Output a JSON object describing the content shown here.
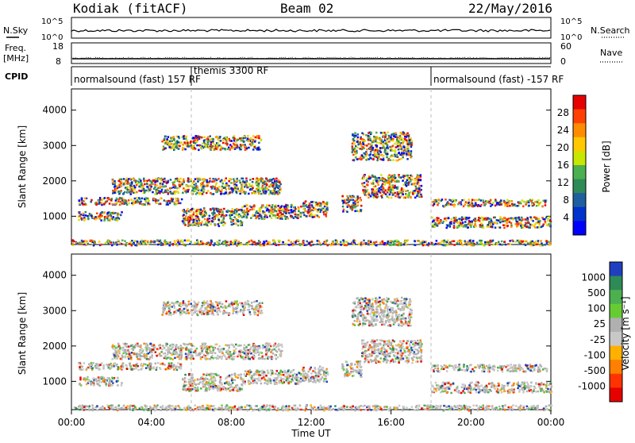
{
  "header": {
    "station": "Kodiak (fitACF)",
    "beam": "Beam 02",
    "date": "22/May/2016"
  },
  "side_labels": {
    "nsky": "N.Sky",
    "nsearch": "N.Search",
    "freq": "Freq.",
    "freq_unit": "[MHz]",
    "nave": "Nave",
    "cpid": "CPID"
  },
  "ticks": {
    "noise_top": "10^5",
    "noise_bottom": "10^0",
    "freq_top": "18",
    "freq_bottom": "8",
    "nave_top": "60",
    "nave_bottom": "0"
  },
  "cpid_labels": [
    {
      "text": "normalsound (fast) 157 RF",
      "at_hours": 0.0
    },
    {
      "text": "themis 3300 RF",
      "at_hours": 6.0
    },
    {
      "text": "normalsound (fast) -157 RF",
      "at_hours": 18.0
    }
  ],
  "chart_data": [
    {
      "type": "heatmap",
      "name": "power",
      "ylabel": "Slant Range [km]",
      "xlim_hours": [
        0,
        24
      ],
      "ylim": [
        200,
        4600
      ],
      "yticks": [
        "1000",
        "2000",
        "3000",
        "4000"
      ],
      "yticks_values": [
        1000,
        2000,
        3000,
        4000
      ],
      "colorbar": {
        "label": "Power [dB]",
        "ticks": [
          "28",
          "24",
          "20",
          "16",
          "12",
          "8",
          "4"
        ],
        "colors": [
          "#e60000",
          "#ff4000",
          "#ff8c00",
          "#ffc800",
          "#c8e600",
          "#4caf50",
          "#2e8b57",
          "#1f5f9f",
          "#0033cc",
          "#0000ff"
        ]
      }
    },
    {
      "type": "heatmap",
      "name": "velocity",
      "ylabel": "Slant Range [km]",
      "xlim_hours": [
        0,
        24
      ],
      "ylim": [
        200,
        4600
      ],
      "yticks": [
        "1000",
        "2000",
        "3000",
        "4000"
      ],
      "yticks_values": [
        1000,
        2000,
        3000,
        4000
      ],
      "colorbar": {
        "label": "Velocity [m s⁻¹]",
        "ticks": [
          "1000",
          "500",
          "100",
          "25",
          "-25",
          "-100",
          "-500",
          "-1000"
        ],
        "colors": [
          "#1f3fbf",
          "#2e8b57",
          "#4caf50",
          "#66cc33",
          "#b0b0b0",
          "#c8c8c8",
          "#ffb000",
          "#ff7f00",
          "#ff3300",
          "#e60000"
        ]
      }
    }
  ],
  "xaxis": {
    "label": "Time UT",
    "ticks": [
      "00:00",
      "04:00",
      "08:00",
      "12:00",
      "16:00",
      "20:00",
      "00:00"
    ]
  },
  "scatter_regions_hours_km": [
    {
      "t0": 0.3,
      "t1": 2.5,
      "r0": 900,
      "r1": 1150
    },
    {
      "t0": 0.3,
      "t1": 5.5,
      "r0": 1350,
      "r1": 1550
    },
    {
      "t0": 2.0,
      "t1": 10.5,
      "r0": 1650,
      "r1": 2100
    },
    {
      "t0": 5.5,
      "t1": 8.5,
      "r0": 750,
      "r1": 1250
    },
    {
      "t0": 8.5,
      "t1": 11.5,
      "r0": 950,
      "r1": 1350
    },
    {
      "t0": 11.5,
      "t1": 12.8,
      "r0": 1000,
      "r1": 1450
    },
    {
      "t0": 13.5,
      "t1": 14.5,
      "r0": 1150,
      "r1": 1600
    },
    {
      "t0": 14.5,
      "t1": 17.5,
      "r0": 1550,
      "r1": 2200
    },
    {
      "t0": 4.5,
      "t1": 9.5,
      "r0": 2900,
      "r1": 3300
    },
    {
      "t0": 14.0,
      "t1": 17.0,
      "r0": 2600,
      "r1": 3400
    },
    {
      "t0": 18.0,
      "t1": 24.0,
      "r0": 700,
      "r1": 1000
    },
    {
      "t0": 18.0,
      "t1": 23.8,
      "r0": 1300,
      "r1": 1500
    },
    {
      "t0": 0.0,
      "t1": 24.0,
      "r0": 200,
      "r1": 350
    }
  ]
}
